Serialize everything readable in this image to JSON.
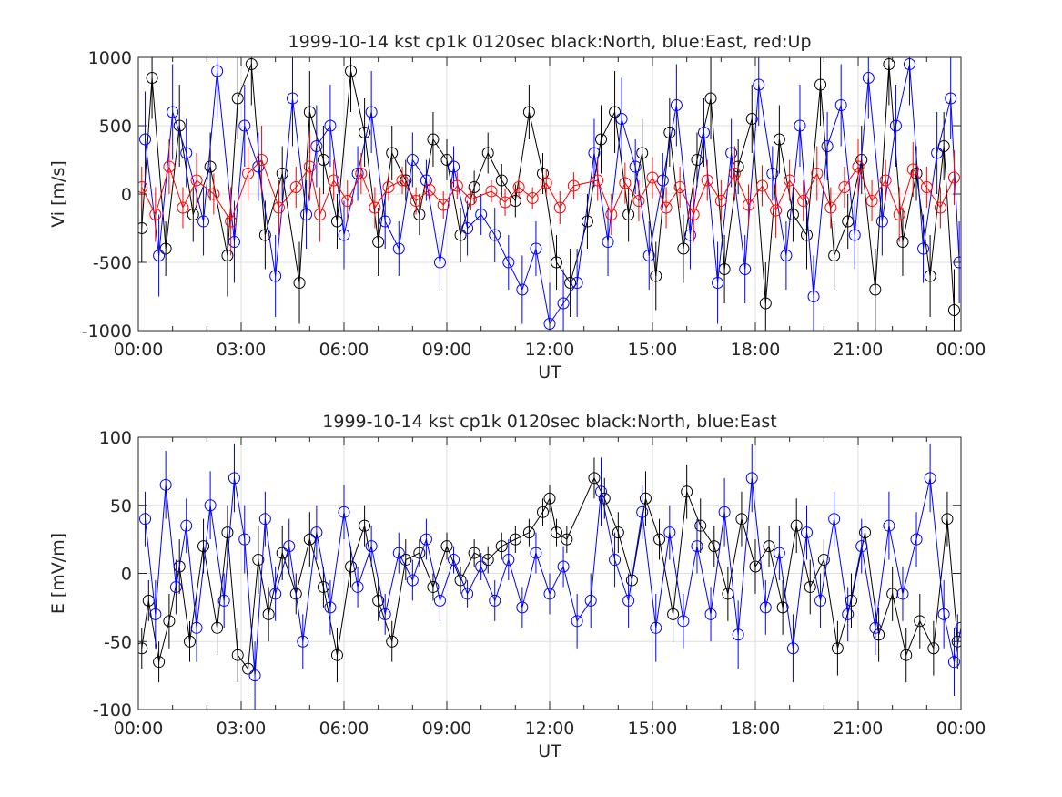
{
  "chart_data": [
    {
      "type": "scatter",
      "title": "1999-10-14 kst cp1k 0120sec black:North, blue:East, red:Up",
      "xlabel": "UT",
      "ylabel": "Vi [m/s]",
      "xlim": [
        0,
        24
      ],
      "ylim": [
        -1000,
        1000
      ],
      "grid": true,
      "xticks": [
        0,
        3,
        6,
        9,
        12,
        15,
        18,
        21,
        24
      ],
      "xticklabels": [
        "00:00",
        "03:00",
        "06:00",
        "09:00",
        "12:00",
        "15:00",
        "18:00",
        "21:00",
        "00:00"
      ],
      "yticks": [
        -1000,
        -500,
        0,
        500,
        1000
      ],
      "yticklabels": [
        "-1000",
        "-500",
        "0",
        "500",
        "1000"
      ],
      "series": [
        {
          "color": "#000000",
          "marker": "circle",
          "x": [
            0.1,
            0.4,
            0.8,
            1.2,
            1.6,
            2.1,
            2.6,
            2.9,
            3.3,
            3.7,
            4.2,
            4.7,
            5.0,
            5.4,
            5.8,
            6.2,
            6.6,
            7.0,
            7.4,
            7.8,
            8.2,
            8.6,
            9.0,
            9.4,
            9.8,
            10.2,
            10.6,
            11.0,
            11.4,
            11.8,
            12.2,
            12.6,
            13.1,
            13.5,
            13.9,
            14.3,
            14.7,
            15.1,
            15.5,
            15.9,
            16.3,
            16.7,
            17.1,
            17.5,
            17.9,
            18.3,
            18.7,
            19.1,
            19.5,
            19.9,
            20.3,
            20.7,
            21.1,
            21.5,
            21.9,
            22.3,
            22.7,
            23.1,
            23.5,
            23.8
          ],
          "y": [
            -250,
            850,
            -400,
            500,
            -150,
            200,
            -450,
            700,
            950,
            -300,
            150,
            -650,
            600,
            250,
            -200,
            900,
            450,
            -350,
            300,
            100,
            -150,
            400,
            250,
            -300,
            50,
            300,
            100,
            -50,
            600,
            150,
            -500,
            -650,
            -200,
            400,
            600,
            -150,
            300,
            -600,
            450,
            -400,
            250,
            700,
            -550,
            200,
            550,
            -800,
            400,
            -150,
            -300,
            800,
            -450,
            -200,
            250,
            -700,
            950,
            -350,
            150,
            -600,
            350,
            -850
          ],
          "error": [
            250,
            300,
            200,
            300,
            200,
            250,
            300,
            300,
            300,
            250,
            200,
            300,
            300,
            250,
            200,
            300,
            250,
            250,
            200,
            150,
            150,
            200,
            150,
            200,
            120,
            150,
            120,
            120,
            200,
            150,
            200,
            250,
            200,
            250,
            300,
            200,
            250,
            250,
            250,
            250,
            200,
            300,
            250,
            200,
            250,
            300,
            250,
            200,
            250,
            300,
            250,
            200,
            250,
            300,
            300,
            250,
            200,
            300,
            250,
            300
          ]
        },
        {
          "color": "#0000ff",
          "marker": "circle",
          "x": [
            0.2,
            0.6,
            1.0,
            1.4,
            1.9,
            2.3,
            2.8,
            3.1,
            3.5,
            4.0,
            4.5,
            4.9,
            5.2,
            5.6,
            6.0,
            6.4,
            6.8,
            7.2,
            7.6,
            8.0,
            8.4,
            8.8,
            9.2,
            9.6,
            10.0,
            10.4,
            10.8,
            11.2,
            11.6,
            12.0,
            12.4,
            12.8,
            13.3,
            13.7,
            14.1,
            14.5,
            14.9,
            15.3,
            15.7,
            16.1,
            16.5,
            16.9,
            17.3,
            17.7,
            18.1,
            18.5,
            18.9,
            19.3,
            19.7,
            20.1,
            20.5,
            20.9,
            21.3,
            21.7,
            22.1,
            22.5,
            22.9,
            23.3,
            23.7,
            23.95
          ],
          "y": [
            400,
            -450,
            600,
            300,
            -200,
            900,
            -350,
            500,
            200,
            -600,
            700,
            -150,
            350,
            500,
            -300,
            150,
            600,
            -200,
            -400,
            250,
            100,
            -500,
            200,
            -250,
            -150,
            -300,
            -500,
            -700,
            -400,
            -950,
            -800,
            -650,
            300,
            -350,
            550,
            200,
            -450,
            100,
            650,
            -300,
            450,
            -650,
            300,
            -550,
            800,
            150,
            -450,
            500,
            -750,
            350,
            650,
            -300,
            850,
            -200,
            500,
            950,
            -400,
            300,
            700,
            -500
          ],
          "error": [
            350,
            300,
            350,
            250,
            250,
            350,
            300,
            300,
            250,
            300,
            350,
            250,
            300,
            300,
            250,
            200,
            300,
            200,
            200,
            200,
            150,
            200,
            150,
            200,
            150,
            200,
            200,
            250,
            200,
            300,
            250,
            250,
            250,
            250,
            300,
            200,
            250,
            200,
            300,
            250,
            250,
            300,
            250,
            250,
            300,
            200,
            250,
            300,
            300,
            250,
            300,
            250,
            300,
            250,
            300,
            300,
            250,
            300,
            300,
            300
          ]
        },
        {
          "color": "#ff0000",
          "marker": "circle",
          "x": [
            0.1,
            0.5,
            0.9,
            1.3,
            1.7,
            2.2,
            2.7,
            3.2,
            3.6,
            4.1,
            4.6,
            5.0,
            5.3,
            5.7,
            6.1,
            6.5,
            6.9,
            7.3,
            7.7,
            8.1,
            8.5,
            8.9,
            9.3,
            9.7,
            10.3,
            10.7,
            11.1,
            11.5,
            11.9,
            12.3,
            12.7,
            13.4,
            13.8,
            14.2,
            14.6,
            15.0,
            15.4,
            15.8,
            16.2,
            16.6,
            17.0,
            17.4,
            17.8,
            18.2,
            18.6,
            19.0,
            19.4,
            19.8,
            20.2,
            20.6,
            21.0,
            21.4,
            21.8,
            22.2,
            22.6,
            23.0,
            23.4,
            23.8
          ],
          "y": [
            50,
            -150,
            200,
            -100,
            100,
            0,
            -200,
            150,
            250,
            -100,
            50,
            200,
            -150,
            100,
            -50,
            150,
            -100,
            50,
            100,
            -50,
            30,
            -80,
            60,
            -40,
            20,
            -60,
            50,
            -30,
            80,
            -100,
            60,
            100,
            -150,
            80,
            -50,
            120,
            -100,
            50,
            -150,
            100,
            -50,
            150,
            -80,
            60,
            -120,
            100,
            -50,
            150,
            -100,
            50,
            200,
            -50,
            100,
            -150,
            180,
            50,
            -100,
            120
          ],
          "error": [
            150,
            200,
            200,
            150,
            200,
            150,
            250,
            200,
            250,
            200,
            150,
            250,
            200,
            150,
            150,
            150,
            150,
            100,
            100,
            100,
            80,
            100,
            100,
            80,
            80,
            100,
            80,
            80,
            100,
            120,
            100,
            150,
            150,
            150,
            150,
            150,
            150,
            150,
            200,
            150,
            150,
            200,
            150,
            150,
            200,
            150,
            150,
            200,
            150,
            150,
            200,
            150,
            150,
            200,
            200,
            150,
            150,
            200
          ]
        }
      ]
    },
    {
      "type": "scatter",
      "title": "1999-10-14 kst cp1k 0120sec black:North, blue:East",
      "xlabel": "UT",
      "ylabel": "E [mV/m]",
      "xlim": [
        0,
        24
      ],
      "ylim": [
        -100,
        100
      ],
      "grid": true,
      "xticks": [
        0,
        3,
        6,
        9,
        12,
        15,
        18,
        21,
        24
      ],
      "xticklabels": [
        "00:00",
        "03:00",
        "06:00",
        "09:00",
        "12:00",
        "15:00",
        "18:00",
        "21:00",
        "00:00"
      ],
      "yticks": [
        -100,
        -50,
        0,
        50,
        100
      ],
      "yticklabels": [
        "-100",
        "-50",
        "0",
        "50",
        "100"
      ],
      "series": [
        {
          "color": "#000000",
          "marker": "circle",
          "x": [
            0.1,
            0.3,
            0.6,
            0.9,
            1.2,
            1.5,
            1.9,
            2.3,
            2.6,
            2.9,
            3.2,
            3.5,
            3.8,
            4.2,
            4.6,
            5.0,
            5.4,
            5.8,
            6.2,
            6.6,
            7.0,
            7.4,
            7.8,
            8.2,
            8.6,
            9.0,
            9.4,
            9.8,
            10.2,
            10.6,
            11.0,
            11.4,
            11.8,
            12.0,
            12.2,
            12.5,
            13.3,
            13.6,
            14.0,
            14.4,
            14.8,
            15.2,
            15.6,
            16.0,
            16.4,
            16.8,
            17.2,
            17.6,
            18.0,
            18.4,
            18.8,
            19.2,
            19.6,
            20.0,
            20.4,
            20.8,
            21.2,
            21.6,
            22.0,
            22.4,
            22.8,
            23.2,
            23.6,
            23.9
          ],
          "y": [
            -55,
            -20,
            -65,
            -35,
            5,
            -50,
            20,
            -40,
            30,
            -60,
            -70,
            10,
            -30,
            15,
            -15,
            25,
            -10,
            -60,
            5,
            35,
            -20,
            -50,
            10,
            15,
            -10,
            20,
            -5,
            15,
            10,
            20,
            25,
            30,
            45,
            55,
            30,
            25,
            70,
            55,
            30,
            -5,
            55,
            25,
            -30,
            60,
            35,
            20,
            -15,
            40,
            5,
            20,
            -25,
            35,
            -10,
            10,
            -55,
            -20,
            30,
            -45,
            -15,
            -60,
            -35,
            -55,
            40,
            -50
          ],
          "error": [
            15,
            15,
            15,
            20,
            20,
            15,
            20,
            20,
            20,
            20,
            20,
            25,
            20,
            20,
            15,
            20,
            15,
            20,
            15,
            15,
            15,
            15,
            15,
            10,
            10,
            10,
            10,
            10,
            10,
            10,
            10,
            10,
            10,
            10,
            10,
            10,
            15,
            15,
            15,
            15,
            20,
            15,
            20,
            20,
            20,
            15,
            20,
            20,
            20,
            15,
            20,
            20,
            20,
            15,
            20,
            20,
            20,
            20,
            20,
            20,
            20,
            20,
            20,
            20
          ]
        },
        {
          "color": "#0000ff",
          "marker": "circle",
          "x": [
            0.2,
            0.5,
            0.8,
            1.1,
            1.4,
            1.7,
            2.1,
            2.5,
            2.8,
            3.1,
            3.4,
            3.7,
            4.0,
            4.4,
            4.8,
            5.2,
            5.6,
            6.0,
            6.4,
            6.8,
            7.2,
            7.6,
            8.0,
            8.4,
            8.8,
            9.2,
            9.6,
            10.0,
            10.4,
            10.8,
            11.2,
            11.6,
            12.0,
            12.4,
            12.8,
            13.2,
            13.5,
            13.9,
            14.3,
            14.7,
            15.1,
            15.5,
            15.9,
            16.3,
            16.7,
            17.1,
            17.5,
            17.9,
            18.3,
            18.7,
            19.1,
            19.5,
            19.9,
            20.3,
            20.7,
            21.1,
            21.5,
            21.9,
            22.3,
            22.7,
            23.1,
            23.5,
            23.8,
            24.0
          ],
          "y": [
            40,
            -30,
            65,
            -10,
            35,
            -40,
            50,
            -20,
            70,
            25,
            -75,
            40,
            -15,
            20,
            -50,
            30,
            -25,
            45,
            -10,
            20,
            -30,
            15,
            -5,
            25,
            -20,
            10,
            -15,
            5,
            -20,
            10,
            -25,
            15,
            -15,
            5,
            -35,
            -20,
            60,
            10,
            -20,
            45,
            -40,
            30,
            -35,
            20,
            -30,
            45,
            -45,
            70,
            -25,
            15,
            -55,
            30,
            -20,
            40,
            -30,
            20,
            -40,
            35,
            -15,
            25,
            70,
            -30,
            -65,
            -40
          ],
          "error": [
            20,
            25,
            25,
            20,
            20,
            25,
            25,
            20,
            25,
            25,
            25,
            20,
            20,
            20,
            20,
            20,
            20,
            20,
            15,
            15,
            15,
            15,
            15,
            15,
            15,
            10,
            10,
            10,
            15,
            15,
            15,
            15,
            15,
            15,
            20,
            20,
            25,
            20,
            20,
            20,
            25,
            20,
            20,
            20,
            20,
            25,
            25,
            25,
            20,
            20,
            25,
            20,
            20,
            20,
            20,
            20,
            20,
            25,
            20,
            20,
            25,
            25,
            25,
            25
          ]
        }
      ]
    }
  ]
}
